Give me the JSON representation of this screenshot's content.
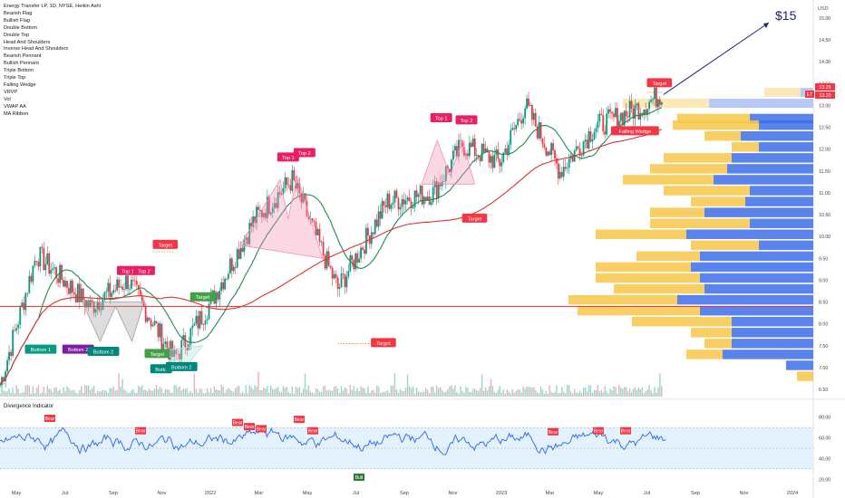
{
  "legend": {
    "title": "Energy Transfer LP, 1D, NYSE, Heikin Ashi",
    "items": [
      "Bearish Flag",
      "Bullish Flag",
      "Double Bottom",
      "Double Top",
      "Head And Shoulders",
      "Inverse Head And Shoulders",
      "Bearish Pennant",
      "Bullish Pennant",
      "Triple Bottom",
      "Triple Top",
      "Falling Wedge",
      "VRVP",
      "Vol",
      "VWAP AA",
      "MA Ribbon"
    ]
  },
  "currency": "USD",
  "target_label": "$15",
  "price_axis": {
    "ticks": [
      "15.00",
      "14.50",
      "14.00",
      "13.50",
      "13.00",
      "12.50",
      "12.00",
      "11.50",
      "11.00",
      "10.50",
      "10.00",
      "9.50",
      "9.00",
      "8.50",
      "8.00",
      "7.50",
      "7.00",
      "6.50"
    ],
    "badges": [
      {
        "text": "13.29",
        "color": "#f23645"
      },
      {
        "text": "13.20",
        "color": "#f23645"
      }
    ],
    "badge_tag": "ET"
  },
  "time_axis": [
    "May",
    "Jul",
    "Sep",
    "Nov",
    "2022",
    "Mar",
    "May",
    "Jul",
    "Sep",
    "Nov",
    "2023",
    "Mar",
    "May",
    "Jul",
    "Sep",
    "Nov",
    "2024"
  ],
  "pattern_labels": {
    "bottom1": "Bottom 1",
    "bottom2": "Bottom 2",
    "top1": "Top 1",
    "top2": "Top 2",
    "target": "Target",
    "falling_wedge": "Falling Wedge",
    "botto": "Botto"
  },
  "indicator": {
    "title": "Divergence Indicator",
    "ticks": [
      "80.00",
      "60.00",
      "40.00",
      "20.00"
    ],
    "bear": "Bear",
    "bull": "Bull"
  },
  "colors": {
    "up": "#089981",
    "down": "#f23645",
    "ma_green": "#1e8c4e",
    "ma_red": "#e03131",
    "accent": "#2f3aa0",
    "osc": "#2962ff"
  },
  "chart_data": {
    "type": "candlestick",
    "y_range": [
      6.5,
      15.2
    ],
    "x_range": [
      "2021-05-01",
      "2024-01-31"
    ],
    "approx_close": [
      {
        "d": "2021-05-01",
        "v": 6.6
      },
      {
        "d": "2021-06-15",
        "v": 9.6
      },
      {
        "d": "2021-08-20",
        "v": 8.4
      },
      {
        "d": "2021-10-05",
        "v": 9.0
      },
      {
        "d": "2021-12-01",
        "v": 7.2
      },
      {
        "d": "2022-01-15",
        "v": 8.5
      },
      {
        "d": "2022-03-10",
        "v": 10.4
      },
      {
        "d": "2022-04-25",
        "v": 11.3
      },
      {
        "d": "2022-06-20",
        "v": 8.8
      },
      {
        "d": "2022-08-20",
        "v": 10.8
      },
      {
        "d": "2022-10-15",
        "v": 11.0
      },
      {
        "d": "2022-11-20",
        "v": 12.1
      },
      {
        "d": "2023-01-05",
        "v": 11.7
      },
      {
        "d": "2023-02-05",
        "v": 13.0
      },
      {
        "d": "2023-03-20",
        "v": 11.5
      },
      {
        "d": "2023-05-01",
        "v": 12.5
      },
      {
        "d": "2023-07-01",
        "v": 13.0
      },
      {
        "d": "2023-07-25",
        "v": 13.3
      }
    ],
    "horizontal_line": 8.4
  }
}
